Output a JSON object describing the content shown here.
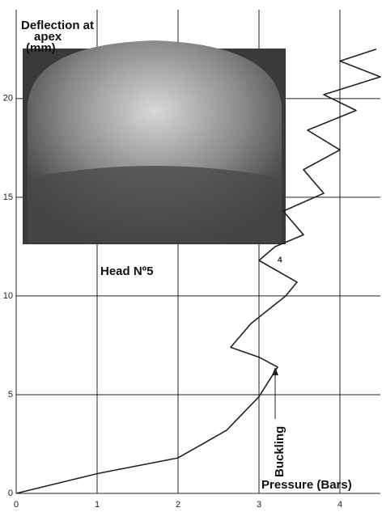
{
  "chart_data": {
    "type": "line",
    "y_label_lines": [
      "Deflection at",
      "apex",
      "(mm)"
    ],
    "x_label": "Pressure (Bars)",
    "annotations": [
      "Head Nº5",
      "Buckling",
      "4"
    ],
    "xlim": [
      0,
      4.5
    ],
    "ylim": [
      0,
      24.5
    ],
    "xticks": [
      0,
      1,
      2,
      3,
      4
    ],
    "yticks": [
      0,
      5,
      10,
      15,
      20
    ],
    "grid": true,
    "series": [
      {
        "color": "#222",
        "x": [
          0,
          1,
          2,
          2.6,
          3,
          3.23,
          3.0,
          2.65,
          2.9,
          3.33,
          3.47,
          3.0,
          3.2,
          3.55,
          3.3,
          3.8,
          3.55,
          4.0,
          3.6,
          4.2,
          3.8,
          4.5,
          4.0,
          4.45
        ],
        "values": [
          0,
          1.0,
          1.8,
          3.2,
          4.9,
          6.4,
          6.9,
          7.4,
          8.6,
          10.0,
          10.7,
          11.8,
          12.5,
          13.1,
          14.3,
          15.2,
          16.4,
          17.4,
          18.4,
          19.4,
          20.2,
          21.1,
          21.9,
          22.5
        ]
      }
    ]
  }
}
